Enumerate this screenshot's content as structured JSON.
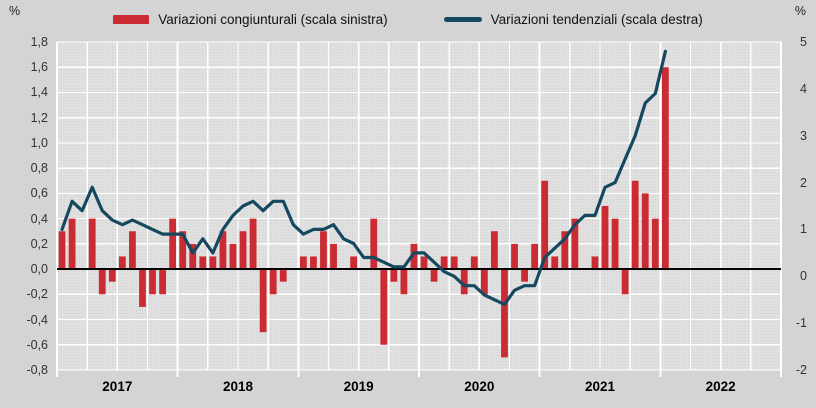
{
  "header": {
    "left_unit": "%",
    "right_unit": "%"
  },
  "legend": {
    "items": [
      {
        "label": "Variazioni congiunturali (scala sinistra)",
        "swatch": "bar-swatch",
        "color": "#cb2b33"
      },
      {
        "label": "Variazioni tendenziali (scala destra)",
        "swatch": "line-swatch",
        "color": "#16485f"
      }
    ]
  },
  "chart_data": {
    "type": "bar+line",
    "title": "",
    "start_year": 2017,
    "points": 61,
    "legend_position": "top",
    "grid": true,
    "x_axis": {
      "years": [
        "2017",
        "2018",
        "2019",
        "2020",
        "2021",
        "2022"
      ],
      "months_per_year": 12,
      "total_slots": 72,
      "gridline_every_months": 3
    },
    "left_axis": {
      "min": -0.8,
      "max": 1.8,
      "step": 0.2,
      "ticks": [
        {
          "label": "1,8",
          "value": 1.8
        },
        {
          "label": "1,6",
          "value": 1.6
        },
        {
          "label": "1,4",
          "value": 1.4
        },
        {
          "label": "1,2",
          "value": 1.2
        },
        {
          "label": "1,0",
          "value": 1.0
        },
        {
          "label": "0,8",
          "value": 0.8
        },
        {
          "label": "0,6",
          "value": 0.6
        },
        {
          "label": "0,4",
          "value": 0.4
        },
        {
          "label": "0,2",
          "value": 0.2
        },
        {
          "label": "0,0",
          "value": 0.0
        },
        {
          "label": "-0,2",
          "value": -0.2
        },
        {
          "label": "-0,4",
          "value": -0.4
        },
        {
          "label": "-0,6",
          "value": -0.6
        },
        {
          "label": "-0,8",
          "value": -0.8
        }
      ]
    },
    "right_axis": {
      "min": -2,
      "max": 5,
      "step": 1,
      "ticks": [
        {
          "label": "5",
          "value": 5
        },
        {
          "label": "4",
          "value": 4
        },
        {
          "label": "3",
          "value": 3
        },
        {
          "label": "2",
          "value": 2
        },
        {
          "label": "1",
          "value": 1
        },
        {
          "label": "0",
          "value": 0
        },
        {
          "label": "-1",
          "value": -1
        },
        {
          "label": "-2",
          "value": -2
        }
      ]
    },
    "series": [
      {
        "name": "Variazioni congiunturali (scala sinistra)",
        "type": "bar",
        "axis": "left",
        "color": "#cb2b33",
        "values": [
          0.3,
          0.4,
          0.0,
          0.4,
          -0.2,
          -0.1,
          0.1,
          0.3,
          -0.3,
          -0.2,
          -0.2,
          0.4,
          0.3,
          0.2,
          0.1,
          0.1,
          0.3,
          0.2,
          0.3,
          0.4,
          -0.5,
          -0.2,
          -0.1,
          0.0,
          0.1,
          0.1,
          0.3,
          0.2,
          0.0,
          0.1,
          0.0,
          0.4,
          -0.6,
          -0.1,
          -0.2,
          0.2,
          0.1,
          -0.1,
          0.1,
          0.1,
          -0.2,
          0.1,
          -0.2,
          0.3,
          -0.7,
          0.2,
          -0.1,
          0.2,
          0.7,
          0.1,
          0.3,
          0.4,
          0.0,
          0.1,
          0.5,
          0.4,
          -0.2,
          0.7,
          0.6,
          0.4,
          1.6
        ]
      },
      {
        "name": "Variazioni tendenziali (scala destra)",
        "type": "line",
        "axis": "right",
        "color": "#16485f",
        "values": [
          1.0,
          1.6,
          1.4,
          1.9,
          1.4,
          1.2,
          1.1,
          1.2,
          1.1,
          1.0,
          0.9,
          0.9,
          0.9,
          0.5,
          0.8,
          0.5,
          1.0,
          1.3,
          1.5,
          1.6,
          1.4,
          1.6,
          1.6,
          1.1,
          0.9,
          1.0,
          1.0,
          1.1,
          0.8,
          0.7,
          0.4,
          0.4,
          0.3,
          0.2,
          0.2,
          0.5,
          0.5,
          0.3,
          0.1,
          0.0,
          -0.2,
          -0.2,
          -0.4,
          -0.5,
          -0.6,
          -0.3,
          -0.2,
          -0.2,
          0.4,
          0.6,
          0.8,
          1.1,
          1.3,
          1.3,
          1.9,
          2.0,
          2.5,
          3.0,
          3.7,
          3.9,
          4.8
        ]
      }
    ]
  }
}
